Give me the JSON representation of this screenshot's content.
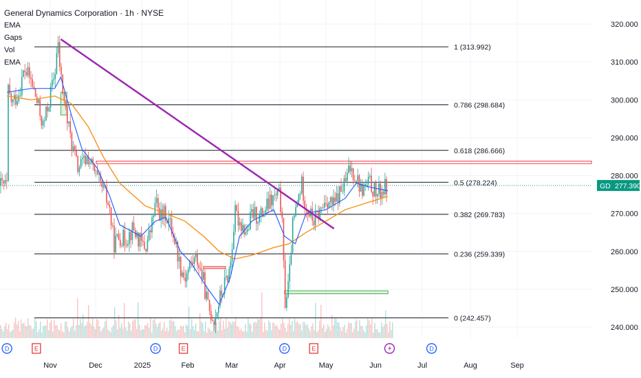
{
  "header": {
    "title": "General Dynamics Corporation · 1h · NYSE",
    "indicators": [
      "EMA",
      "Gaps",
      "Vol",
      "EMA"
    ]
  },
  "colors": {
    "up": "#26a69a",
    "down": "#ef5350",
    "ema_fast": "#2962ff",
    "ema_slow": "#f7931a",
    "trendline": "#9c27b0",
    "resistance": "#f23645",
    "gap": "#4caf50",
    "price_tag": "#089981"
  },
  "chart_data": {
    "type": "candlestick",
    "title": "General Dynamics Corporation · 1h · NYSE",
    "x_labels": [
      "Nov",
      "Dec",
      "2025",
      "Feb",
      "Mar",
      "Apr",
      "May",
      "Jun",
      "Jul",
      "Aug",
      "Sep"
    ],
    "y_ticks": [
      "320.000",
      "310.000",
      "300.000",
      "290.000",
      "280.000",
      "270.000",
      "260.000",
      "250.000",
      "240.000"
    ],
    "ylim": [
      238,
      321
    ],
    "price_series": [
      {
        "t": "Oct 7",
        "v": 303
      },
      {
        "t": "Oct 10",
        "v": 299
      },
      {
        "t": "Oct 14",
        "v": 302
      },
      {
        "t": "Oct 17",
        "v": 308
      },
      {
        "t": "Oct 21",
        "v": 305
      },
      {
        "t": "Oct 24",
        "v": 300
      },
      {
        "t": "Oct 28",
        "v": 293
      },
      {
        "t": "Oct 31",
        "v": 299
      },
      {
        "t": "Nov 4",
        "v": 307
      },
      {
        "t": "Nov 6",
        "v": 315
      },
      {
        "t": "Nov 8",
        "v": 306
      },
      {
        "t": "Nov 12",
        "v": 295
      },
      {
        "t": "Nov 15",
        "v": 289
      },
      {
        "t": "Nov 19",
        "v": 282
      },
      {
        "t": "Nov 22",
        "v": 283
      },
      {
        "t": "Nov 26",
        "v": 285
      },
      {
        "t": "Dec 2",
        "v": 279
      },
      {
        "t": "Dec 6",
        "v": 276
      },
      {
        "t": "Dec 10",
        "v": 272
      },
      {
        "t": "Dec 13",
        "v": 262
      },
      {
        "t": "Dec 17",
        "v": 264
      },
      {
        "t": "Dec 20",
        "v": 263
      },
      {
        "t": "Dec 26",
        "v": 266
      },
      {
        "t": "Dec 31",
        "v": 262
      },
      {
        "t": "Jan 3",
        "v": 261
      },
      {
        "t": "Jan 7",
        "v": 266
      },
      {
        "t": "Jan 10",
        "v": 273
      },
      {
        "t": "Jan 14",
        "v": 269
      },
      {
        "t": "Jan 17",
        "v": 270
      },
      {
        "t": "Jan 22",
        "v": 265
      },
      {
        "t": "Jan 27",
        "v": 256
      },
      {
        "t": "Jan 30",
        "v": 253
      },
      {
        "t": "Feb 3",
        "v": 257
      },
      {
        "t": "Feb 7",
        "v": 258
      },
      {
        "t": "Feb 11",
        "v": 252
      },
      {
        "t": "Feb 14",
        "v": 245
      },
      {
        "t": "Feb 18",
        "v": 242
      },
      {
        "t": "Feb 21",
        "v": 247
      },
      {
        "t": "Feb 25",
        "v": 252
      },
      {
        "t": "Feb 28",
        "v": 256
      },
      {
        "t": "Mar 3",
        "v": 270
      },
      {
        "t": "Mar 6",
        "v": 268
      },
      {
        "t": "Mar 11",
        "v": 265
      },
      {
        "t": "Mar 14",
        "v": 270
      },
      {
        "t": "Mar 19",
        "v": 269
      },
      {
        "t": "Mar 24",
        "v": 272
      },
      {
        "t": "Mar 28",
        "v": 274
      },
      {
        "t": "Apr 1",
        "v": 275
      },
      {
        "t": "Apr 3",
        "v": 263
      },
      {
        "t": "Apr 4",
        "v": 246
      },
      {
        "t": "Apr 7",
        "v": 252
      },
      {
        "t": "Apr 9",
        "v": 266
      },
      {
        "t": "Apr 11",
        "v": 270
      },
      {
        "t": "Apr 15",
        "v": 278
      },
      {
        "t": "Apr 18",
        "v": 272
      },
      {
        "t": "Apr 23",
        "v": 268
      },
      {
        "t": "Apr 28",
        "v": 271
      },
      {
        "t": "May 1",
        "v": 274
      },
      {
        "t": "May 6",
        "v": 272
      },
      {
        "t": "May 9",
        "v": 275
      },
      {
        "t": "May 13",
        "v": 278
      },
      {
        "t": "May 16",
        "v": 282
      },
      {
        "t": "May 20",
        "v": 280
      },
      {
        "t": "May 23",
        "v": 276
      },
      {
        "t": "May 28",
        "v": 278
      },
      {
        "t": "Jun 2",
        "v": 275
      },
      {
        "t": "Jun 5",
        "v": 276
      },
      {
        "t": "Jun 9",
        "v": 277.39
      }
    ],
    "ema_fast": [
      {
        "t": "Oct 7",
        "v": 302
      },
      {
        "t": "Oct 21",
        "v": 303
      },
      {
        "t": "Nov 4",
        "v": 303
      },
      {
        "t": "Nov 8",
        "v": 306
      },
      {
        "t": "Nov 15",
        "v": 296
      },
      {
        "t": "Nov 22",
        "v": 287
      },
      {
        "t": "Dec 2",
        "v": 282
      },
      {
        "t": "Dec 10",
        "v": 275
      },
      {
        "t": "Dec 17",
        "v": 267
      },
      {
        "t": "Dec 31",
        "v": 264
      },
      {
        "t": "Jan 10",
        "v": 268
      },
      {
        "t": "Jan 17",
        "v": 269
      },
      {
        "t": "Jan 27",
        "v": 260
      },
      {
        "t": "Feb 3",
        "v": 257
      },
      {
        "t": "Feb 14",
        "v": 250
      },
      {
        "t": "Feb 21",
        "v": 246
      },
      {
        "t": "Feb 28",
        "v": 253
      },
      {
        "t": "Mar 6",
        "v": 264
      },
      {
        "t": "Mar 14",
        "v": 268
      },
      {
        "t": "Mar 28",
        "v": 271
      },
      {
        "t": "Apr 4",
        "v": 264
      },
      {
        "t": "Apr 11",
        "v": 262
      },
      {
        "t": "Apr 18",
        "v": 270
      },
      {
        "t": "May 1",
        "v": 271
      },
      {
        "t": "May 13",
        "v": 274
      },
      {
        "t": "May 20",
        "v": 278
      },
      {
        "t": "May 28",
        "v": 277
      },
      {
        "t": "Jun 9",
        "v": 276
      }
    ],
    "ema_slow": [
      {
        "t": "Oct 7",
        "v": 301
      },
      {
        "t": "Oct 21",
        "v": 300
      },
      {
        "t": "Nov 4",
        "v": 301
      },
      {
        "t": "Nov 15",
        "v": 299
      },
      {
        "t": "Nov 26",
        "v": 293
      },
      {
        "t": "Dec 6",
        "v": 285
      },
      {
        "t": "Dec 17",
        "v": 278
      },
      {
        "t": "Jan 3",
        "v": 272
      },
      {
        "t": "Jan 17",
        "v": 270
      },
      {
        "t": "Jan 30",
        "v": 268
      },
      {
        "t": "Feb 11",
        "v": 264
      },
      {
        "t": "Feb 21",
        "v": 260
      },
      {
        "t": "Mar 3",
        "v": 258
      },
      {
        "t": "Mar 14",
        "v": 259
      },
      {
        "t": "Mar 28",
        "v": 261
      },
      {
        "t": "Apr 7",
        "v": 262
      },
      {
        "t": "Apr 18",
        "v": 265
      },
      {
        "t": "May 1",
        "v": 268
      },
      {
        "t": "May 13",
        "v": 271
      },
      {
        "t": "May 28",
        "v": 273
      },
      {
        "t": "Jun 9",
        "v": 274.5
      }
    ],
    "fib_levels": [
      {
        "label": "1 (313.992)",
        "value": 313.992
      },
      {
        "label": "0.786 (298.684)",
        "value": 298.684
      },
      {
        "label": "0.618 (286.666)",
        "value": 286.666
      },
      {
        "label": "0.5 (278.224)",
        "value": 278.224
      },
      {
        "label": "0.382 (269.783)",
        "value": 269.783
      },
      {
        "label": "0.236 (259.339)",
        "value": 259.339
      },
      {
        "label": "0 (242.457)",
        "value": 242.457
      }
    ],
    "resistance_level": 283.5,
    "trendline": {
      "from": {
        "t": "Nov 8",
        "v": 316
      },
      "to": {
        "t": "May 6",
        "v": 266
      }
    },
    "gap_zones": [
      {
        "t1": "Nov 8",
        "t2": "Nov 12",
        "v1": 302,
        "v2": 296
      },
      {
        "t1": "Feb 11",
        "t2": "Feb 25",
        "v1": 256,
        "v2": 255.5
      },
      {
        "t1": "Apr 4",
        "t2": "Jun 9",
        "v1": 249.6,
        "v2": 248.8
      }
    ],
    "last_price": {
      "symbol": "GD",
      "value": "277.390",
      "v": 277.39
    },
    "event_markers": [
      {
        "t": "Oct 7",
        "kind": "D"
      },
      {
        "t": "Oct 24",
        "kind": "E"
      },
      {
        "t": "Jan 10",
        "kind": "D"
      },
      {
        "t": "Jan 29",
        "kind": "E"
      },
      {
        "t": "Apr 4",
        "kind": "D"
      },
      {
        "t": "Apr 23",
        "kind": "E"
      },
      {
        "t": "Jun 10",
        "kind": "bolt"
      },
      {
        "t": "Jul 7",
        "kind": "D"
      }
    ]
  }
}
